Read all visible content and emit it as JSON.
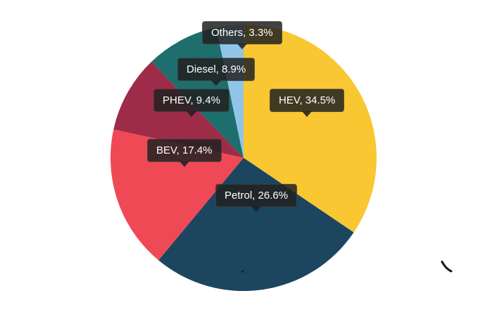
{
  "page": {
    "background": "#ffffff"
  },
  "chart_data": {
    "type": "pie",
    "title": "",
    "legend": "none",
    "start_angle_deg": 0,
    "direction": "clockwise",
    "unit": "%",
    "categories": [
      "HEV",
      "Petrol",
      "BEV",
      "PHEV",
      "Diesel",
      "Others"
    ],
    "values": [
      34.5,
      26.6,
      17.4,
      9.4,
      8.9,
      3.3
    ],
    "colors": [
      "#F8C732",
      "#1C455F",
      "#EF4956",
      "#9E2B47",
      "#1E6E6E",
      "#90C5E9"
    ],
    "callouts": [
      {
        "text": "HEV, 34.5%"
      },
      {
        "text": "Petrol, 26.6%"
      },
      {
        "text": "BEV, 17.4%"
      },
      {
        "text": "PHEV, 9.4%"
      },
      {
        "text": "Diesel, 8.9%"
      },
      {
        "text": "Others, 3.3%"
      }
    ],
    "tooltip_bg": "#212121",
    "tooltip_text_color": "#ffffff"
  }
}
